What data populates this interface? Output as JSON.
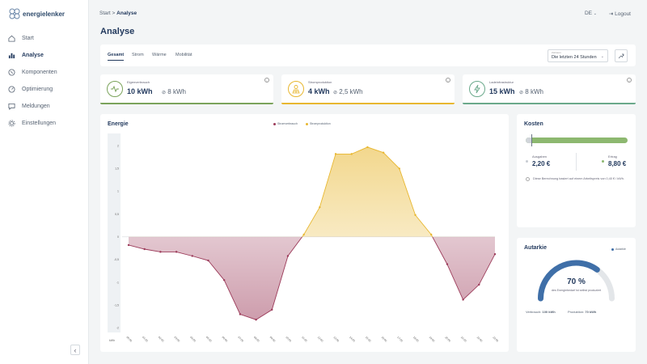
{
  "brand": {
    "name": "energielenker"
  },
  "nav": [
    {
      "label": "Start",
      "icon": "home-icon",
      "active": false
    },
    {
      "label": "Analyse",
      "icon": "chart-icon",
      "active": true
    },
    {
      "label": "Komponenten",
      "icon": "plug-icon",
      "active": false
    },
    {
      "label": "Optimierung",
      "icon": "gauge-icon",
      "active": false
    },
    {
      "label": "Meldungen",
      "icon": "message-icon",
      "active": false
    },
    {
      "label": "Einstellungen",
      "icon": "gear-icon",
      "active": false
    }
  ],
  "header": {
    "breadcrumb_root": "Start",
    "breadcrumb_sep": ">",
    "breadcrumb_current": "Analyse",
    "language": "DE",
    "logout": "Logout"
  },
  "page": {
    "title": "Analyse"
  },
  "tabs": [
    "Gesamt",
    "Strom",
    "Wärme",
    "Mobilität"
  ],
  "range": {
    "label": "Zeitraum",
    "value": "Die letzten 24 Stunden"
  },
  "kpis": [
    {
      "label": "Eigenverbrauch",
      "value": "10 kWh",
      "avg": "8 kWh",
      "color": "#7ba35b"
    },
    {
      "label": "Stromproduktion",
      "value": "4 kWh",
      "avg": "2,5 kWh",
      "color": "#e8b730"
    },
    {
      "label": "Ladeinfrastruktur",
      "value": "15 kWh",
      "avg": "8 kWh",
      "color": "#6aa98b"
    }
  ],
  "energy": {
    "title": "Energie",
    "legend": [
      {
        "name": "Stromverbrauch",
        "color": "#9c3b5a"
      },
      {
        "name": "Stromproduktion",
        "color": "#e8b730"
      }
    ]
  },
  "chart_data": {
    "type": "area",
    "ylabel": "kWh",
    "ylim": [
      -2.1,
      2.2
    ],
    "yticks": [
      2,
      1.5,
      1,
      0.5,
      0,
      -0.5,
      -1,
      -1.5,
      -2
    ],
    "x": [
      "00:00",
      "01:00",
      "02:00",
      "03:00",
      "04:00",
      "05:00",
      "06:00",
      "07:00",
      "08:00",
      "09:00",
      "10:00",
      "11:00",
      "12:00",
      "13:00",
      "14:00",
      "15:00",
      "16:00",
      "17:00",
      "18:00",
      "19:00",
      "20:00",
      "21:00",
      "22:00",
      "23:00"
    ],
    "values": [
      -0.18,
      -0.27,
      -0.33,
      -0.33,
      -0.42,
      -0.52,
      -0.95,
      -1.7,
      -1.82,
      -1.6,
      -0.42,
      0.05,
      0.65,
      1.82,
      1.82,
      1.97,
      1.85,
      1.5,
      0.48,
      0.05,
      -0.6,
      -1.38,
      -1.05,
      -0.38
    ]
  },
  "costs": {
    "title": "Kosten",
    "expense_label": "Ausgaben",
    "expense_value": "2,20 €",
    "income_label": "Ertrag",
    "income_value": "8,80 €",
    "note": "Diese Berechnung basiert auf einem Arbeitspreis von 0,40 € / kWh.",
    "expense_color": "#c7ccd2",
    "income_color": "#8db870"
  },
  "autarkie": {
    "title": "Autarkie",
    "legend": "Autarkie",
    "percent": "70 %",
    "percent_value": 70,
    "caption": "des Energiebedarf ist selbst produziert",
    "consumption_label": "Verbrauch:",
    "consumption_value": "100 kWh",
    "production_label": "Produktion:",
    "production_value": "70 kWh"
  }
}
